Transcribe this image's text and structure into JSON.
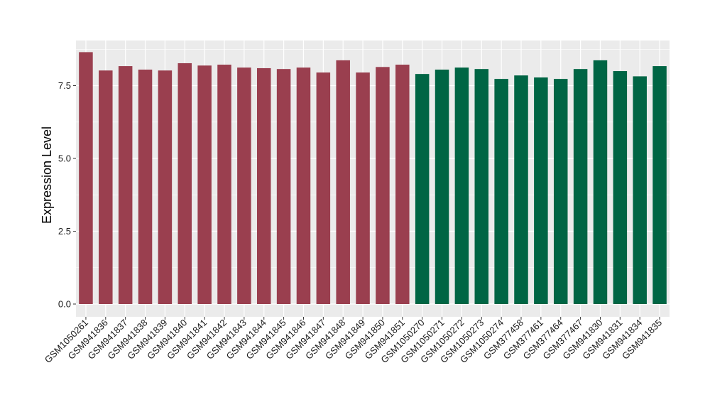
{
  "chart_data": {
    "type": "bar",
    "xlabel": "",
    "ylabel": "Expression Level",
    "ylim": [
      0,
      9.05
    ],
    "yticks": [
      0.0,
      2.5,
      5.0,
      7.5
    ],
    "ytick_labels": [
      "0.0",
      "2.5",
      "5.0",
      "7.5"
    ],
    "grid": true,
    "legend": "none",
    "colors": {
      "group1": "#9a3f4f",
      "group2": "#006544",
      "panel": "#ebebeb",
      "grid": "#ffffff"
    },
    "categories": [
      "GSM1050261",
      "GSM941836",
      "GSM941837",
      "GSM941838",
      "GSM941839",
      "GSM941840",
      "GSM941841",
      "GSM941842",
      "GSM941843",
      "GSM941844",
      "GSM941845",
      "GSM941846",
      "GSM941847",
      "GSM941848",
      "GSM941849",
      "GSM941850",
      "GSM941851",
      "GSM1050270",
      "GSM1050271",
      "GSM1050272",
      "GSM1050273",
      "GSM1050274",
      "GSM377458",
      "GSM377461",
      "GSM377464",
      "GSM377467",
      "GSM941830",
      "GSM941831",
      "GSM941834",
      "GSM941835"
    ],
    "values": [
      8.65,
      8.02,
      8.17,
      8.05,
      8.02,
      8.27,
      8.19,
      8.22,
      8.12,
      8.1,
      8.07,
      8.12,
      7.95,
      8.37,
      7.95,
      8.14,
      8.22,
      7.9,
      8.05,
      8.12,
      8.07,
      7.73,
      7.85,
      7.78,
      7.73,
      8.07,
      8.37,
      8.0,
      7.82,
      8.17
    ],
    "groups": [
      1,
      1,
      1,
      1,
      1,
      1,
      1,
      1,
      1,
      1,
      1,
      1,
      1,
      1,
      1,
      1,
      1,
      2,
      2,
      2,
      2,
      2,
      2,
      2,
      2,
      2,
      2,
      2,
      2,
      2
    ]
  }
}
